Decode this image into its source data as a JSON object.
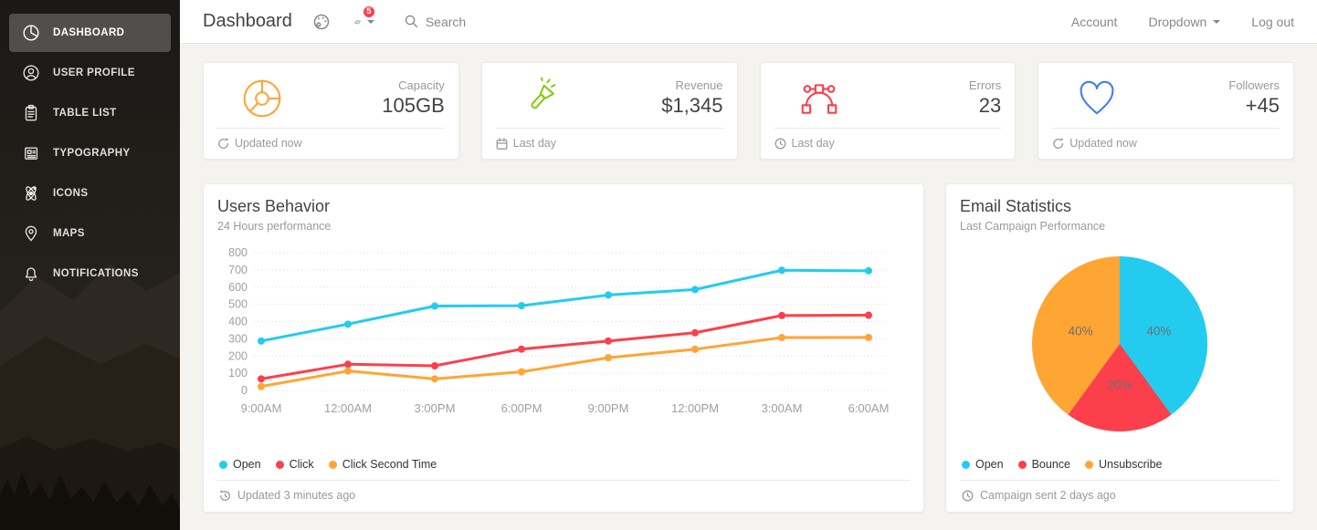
{
  "navbar": {
    "title": "Dashboard",
    "badge": "5",
    "search_label": "Search",
    "links": [
      "Account",
      "Dropdown",
      "Log out"
    ]
  },
  "sidebar": {
    "items": [
      {
        "label": "DASHBOARD",
        "icon": "chart-pie-icon",
        "active": true
      },
      {
        "label": "USER PROFILE",
        "icon": "user-circle-icon",
        "active": false
      },
      {
        "label": "TABLE LIST",
        "icon": "clipboard-icon",
        "active": false
      },
      {
        "label": "TYPOGRAPHY",
        "icon": "newspaper-icon",
        "active": false
      },
      {
        "label": "ICONS",
        "icon": "atom-icon",
        "active": false
      },
      {
        "label": "MAPS",
        "icon": "map-pin-icon",
        "active": false
      },
      {
        "label": "NOTIFICATIONS",
        "icon": "bell-icon",
        "active": false
      }
    ]
  },
  "stat_cards": [
    {
      "label": "Capacity",
      "value": "105GB",
      "icon": "chart-pie-icon",
      "icon_color": "#FFA534",
      "footer_icon": "refresh-icon",
      "footer_text": "Updated now"
    },
    {
      "label": "Revenue",
      "value": "$1,345",
      "icon": "flashlight-icon",
      "icon_color": "#87CB16",
      "footer_icon": "calendar-icon",
      "footer_text": "Last day"
    },
    {
      "label": "Errors",
      "value": "23",
      "icon": "vector-icon",
      "icon_color": "#FB404B",
      "footer_icon": "clock-icon",
      "footer_text": "Last day"
    },
    {
      "label": "Followers",
      "value": "+45",
      "icon": "heart-icon",
      "icon_color": "#447DF7",
      "footer_icon": "refresh-icon",
      "footer_text": "Updated now"
    }
  ],
  "users_behavior": {
    "title": "Users Behavior",
    "subtitle": "24 Hours performance",
    "footer_icon": "history-icon",
    "footer_text": "Updated 3 minutes ago"
  },
  "email_statistics": {
    "title": "Email Statistics",
    "subtitle": "Last Campaign Performance",
    "footer_icon": "clock-icon",
    "footer_text": "Campaign sent 2 days ago"
  },
  "chart_data": [
    {
      "type": "line",
      "title": "Users Behavior",
      "xlabel": "",
      "ylabel": "",
      "x_labels": [
        "9:00AM",
        "12:00AM",
        "3:00PM",
        "6:00PM",
        "9:00PM",
        "12:00PM",
        "3:00AM",
        "6:00AM"
      ],
      "ylim": [
        0,
        800
      ],
      "ytick_step": 100,
      "grid": "horizontal-dotted",
      "legend_position": "bottom-left",
      "series": [
        {
          "name": "Open",
          "color": "#23CCEF",
          "values": [
            287,
            385,
            490,
            492,
            554,
            586,
            698,
            695
          ]
        },
        {
          "name": "Click",
          "color": "#FB404B",
          "values": [
            67,
            152,
            143,
            240,
            287,
            335,
            435,
            437
          ]
        },
        {
          "name": "Click Second Time",
          "color": "#FFA534",
          "values": [
            23,
            113,
            67,
            108,
            190,
            239,
            307,
            308
          ]
        }
      ]
    },
    {
      "type": "pie",
      "title": "Email Statistics",
      "start": "top-clockwise",
      "legend_position": "bottom-left",
      "slices": [
        {
          "name": "Open",
          "value": 40,
          "label": "40%",
          "color": "#23CCEF"
        },
        {
          "name": "Bounce",
          "value": 20,
          "label": "20%",
          "color": "#FB404B"
        },
        {
          "name": "Unsubscribe",
          "value": 40,
          "label": "40%",
          "color": "#FFA534"
        }
      ]
    }
  ]
}
